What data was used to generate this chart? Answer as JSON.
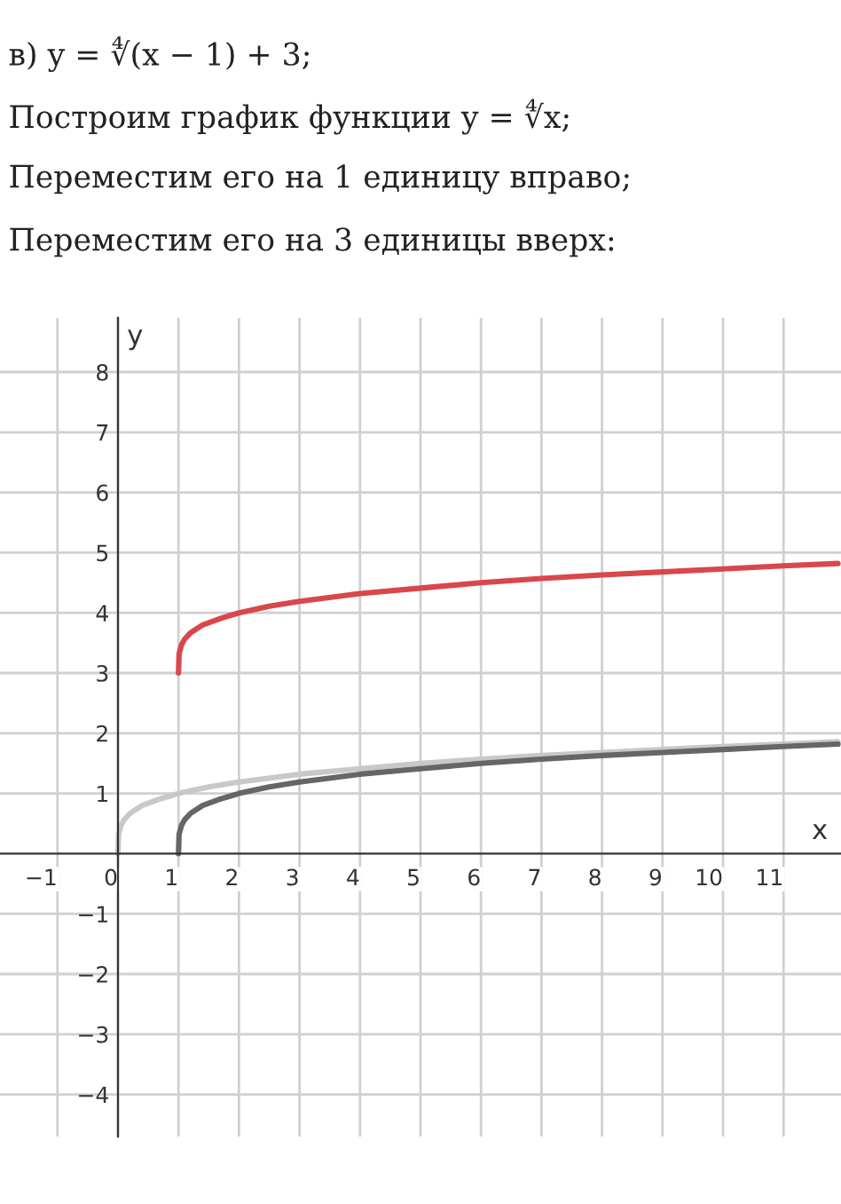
{
  "chart_data": {
    "type": "line",
    "annotations": [
      "в) y = ∜(x − 1) + 3;",
      "Построим график функции y = ∜x;",
      "Переместим его на 1 единицу вправо;",
      "Переместим его на 3 единицы вверх:"
    ],
    "xlabel": "x",
    "ylabel": "y",
    "series": [
      {
        "color": "#c8c8c8",
        "x": [
          0,
          0.01,
          0.05,
          0.1,
          0.2,
          0.4,
          0.7,
          1,
          1.5,
          2,
          3,
          4,
          5,
          6,
          7,
          8,
          9,
          10,
          11,
          11.9
        ],
        "values": [
          0,
          0.32,
          0.47,
          0.56,
          0.67,
          0.8,
          0.91,
          1,
          1.11,
          1.19,
          1.32,
          1.41,
          1.5,
          1.57,
          1.63,
          1.68,
          1.73,
          1.78,
          1.82,
          1.86
        ]
      },
      {
        "color": "#666666",
        "x": [
          1,
          1.01,
          1.05,
          1.1,
          1.2,
          1.4,
          1.7,
          2,
          2.5,
          3,
          4,
          5,
          6,
          7,
          8,
          9,
          10,
          11,
          11.9
        ],
        "values": [
          0,
          0.32,
          0.47,
          0.56,
          0.67,
          0.8,
          0.91,
          1,
          1.11,
          1.19,
          1.32,
          1.41,
          1.5,
          1.57,
          1.63,
          1.68,
          1.73,
          1.78,
          1.82
        ]
      },
      {
        "color": "#d9474a",
        "x": [
          1,
          1.01,
          1.05,
          1.1,
          1.2,
          1.4,
          1.7,
          2,
          2.5,
          3,
          4,
          5,
          6,
          7,
          8,
          9,
          10,
          11,
          11.9
        ],
        "values": [
          3,
          3.32,
          3.47,
          3.56,
          3.67,
          3.8,
          3.91,
          4,
          4.11,
          4.19,
          4.32,
          4.41,
          4.5,
          4.57,
          4.63,
          4.68,
          4.73,
          4.78,
          4.82
        ]
      }
    ],
    "xlim": [
      -1.95,
      11.95
    ],
    "ylim": [
      -4.7,
      8.9
    ],
    "xticks": [
      -1,
      0,
      1,
      2,
      3,
      4,
      5,
      6,
      7,
      8,
      9,
      10,
      11
    ],
    "yticks": [
      -4,
      -3,
      -2,
      -1,
      1,
      2,
      3,
      4,
      5,
      6,
      7,
      8
    ],
    "grid": true
  }
}
